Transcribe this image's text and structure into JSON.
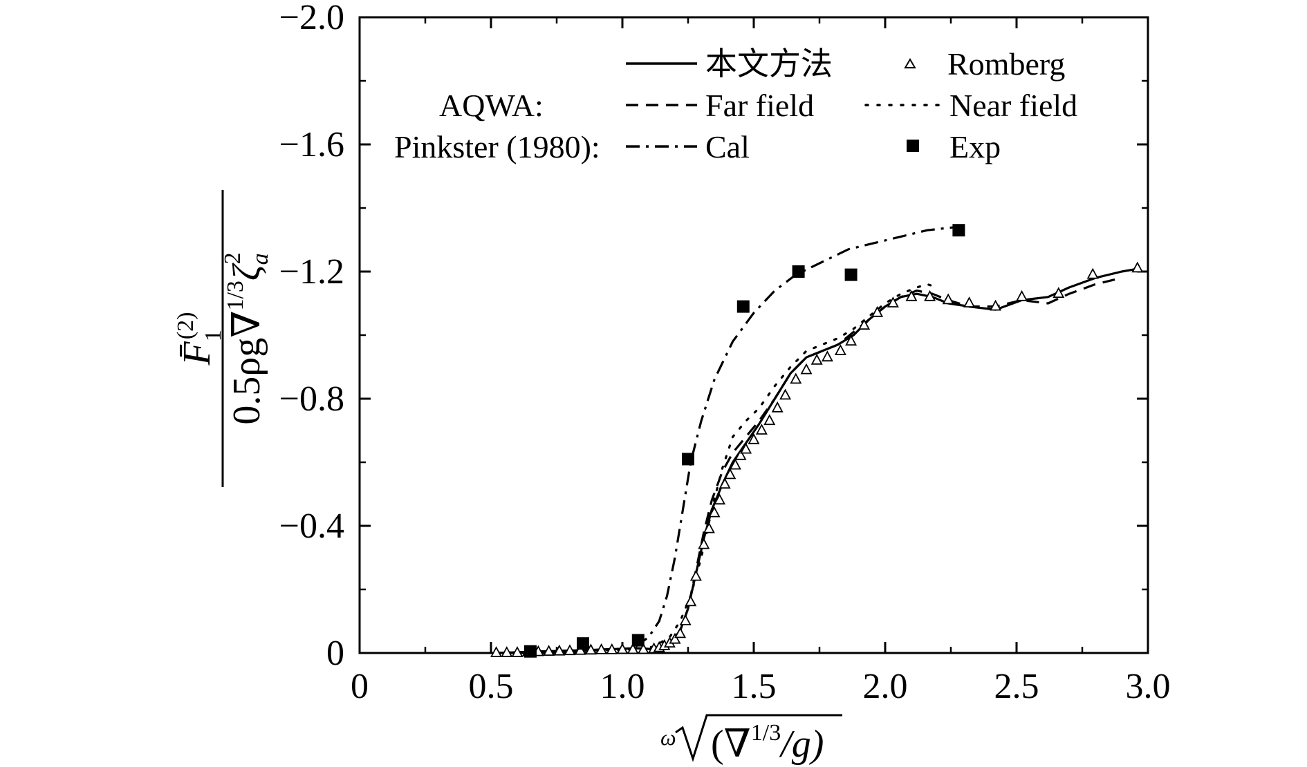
{
  "chart_data": {
    "type": "line",
    "title": "",
    "x_axis": {
      "label_prefix": "ω",
      "label_radicand": "(∇",
      "label_exponent": "1/3",
      "label_suffix": "/g)",
      "range": [
        0,
        3.0
      ],
      "tick_labels": [
        {
          "value": 0,
          "label": "0"
        },
        {
          "value": 0.5,
          "label": "0.5"
        },
        {
          "value": 1.0,
          "label": "1.0"
        },
        {
          "value": 1.5,
          "label": "1.5"
        },
        {
          "value": 2.0,
          "label": "2.0"
        },
        {
          "value": 2.5,
          "label": "2.5"
        },
        {
          "value": 3.0,
          "label": "3.0"
        }
      ]
    },
    "y_axis": {
      "label_numerator": "F̄",
      "label_numerator_sub": "1",
      "label_numerator_sup": "(2)",
      "label_denominator": "0.5ρg∇",
      "label_denominator_sup": "1/3",
      "label_denominator_tail": "ζ",
      "label_denominator_tail_sub": "a",
      "label_denominator_tail_sup": "2",
      "range": [
        0,
        -2.0
      ],
      "inverted": true,
      "tick_labels": [
        {
          "value": 0,
          "label": "0"
        },
        {
          "value": -0.4,
          "label": "−0.4"
        },
        {
          "value": -0.8,
          "label": "−0.8"
        },
        {
          "value": -1.2,
          "label": "−1.2"
        },
        {
          "value": -1.6,
          "label": "−1.6"
        },
        {
          "value": -2.0,
          "label": "−2.0"
        }
      ]
    },
    "legend": {
      "placement": "top",
      "group_aqwa": "AQWA:",
      "group_pinkster": "Pinkster (1980):",
      "entries": [
        {
          "key": "present",
          "label": "本文方法"
        },
        {
          "key": "romberg",
          "label": "Romberg"
        },
        {
          "key": "far",
          "label": "Far field"
        },
        {
          "key": "near",
          "label": "Near field"
        },
        {
          "key": "cal",
          "label": "Cal"
        },
        {
          "key": "exp",
          "label": "Exp"
        }
      ]
    },
    "series": [
      {
        "name": "本文方法",
        "key": "present",
        "style": "solid",
        "x": [
          0.52,
          0.7,
          0.9,
          1.05,
          1.12,
          1.18,
          1.22,
          1.25,
          1.28,
          1.31,
          1.34,
          1.38,
          1.42,
          1.47,
          1.52,
          1.58,
          1.64,
          1.7,
          1.76,
          1.82,
          1.88,
          1.94,
          2.0,
          2.06,
          2.12,
          2.18,
          2.24,
          2.32,
          2.42,
          2.52,
          2.62,
          2.7,
          2.8,
          2.9,
          2.97
        ],
        "y": [
          0,
          -0.005,
          -0.01,
          -0.015,
          -0.012,
          -0.03,
          -0.07,
          -0.14,
          -0.25,
          -0.36,
          -0.45,
          -0.53,
          -0.6,
          -0.66,
          -0.72,
          -0.8,
          -0.88,
          -0.93,
          -0.95,
          -0.97,
          -1.0,
          -1.05,
          -1.09,
          -1.12,
          -1.13,
          -1.12,
          -1.1,
          -1.09,
          -1.08,
          -1.11,
          -1.12,
          -1.15,
          -1.18,
          -1.2,
          -1.21
        ]
      },
      {
        "name": "Far field",
        "key": "far",
        "style": "dashed",
        "x": [
          0.52,
          0.7,
          0.9,
          1.05,
          1.12,
          1.18,
          1.22,
          1.25,
          1.28,
          1.31,
          1.34,
          1.38,
          1.42,
          1.47,
          1.52,
          1.58,
          1.64,
          1.7,
          1.76,
          1.82,
          1.88,
          1.94,
          2.0,
          2.06,
          2.12,
          2.18,
          2.24,
          2.32,
          2.42,
          2.52,
          2.62,
          2.7,
          2.8,
          2.9
        ],
        "y": [
          0,
          -0.005,
          -0.01,
          -0.015,
          -0.012,
          -0.03,
          -0.07,
          -0.14,
          -0.26,
          -0.38,
          -0.48,
          -0.57,
          -0.63,
          -0.68,
          -0.73,
          -0.8,
          -0.88,
          -0.93,
          -0.95,
          -0.97,
          -1.01,
          -1.05,
          -1.09,
          -1.12,
          -1.14,
          -1.13,
          -1.11,
          -1.09,
          -1.09,
          -1.11,
          -1.1,
          -1.13,
          -1.16,
          -1.18
        ]
      },
      {
        "name": "Near field",
        "key": "near",
        "style": "dotted",
        "x": [
          0.52,
          0.7,
          0.9,
          1.05,
          1.12,
          1.18,
          1.22,
          1.26,
          1.3,
          1.34,
          1.38,
          1.42,
          1.47,
          1.52,
          1.58,
          1.64,
          1.7,
          1.76,
          1.82,
          1.88,
          1.94,
          2.0,
          2.06,
          2.12,
          2.16,
          2.2
        ],
        "y": [
          0,
          -0.005,
          -0.008,
          -0.012,
          -0.02,
          -0.05,
          -0.1,
          -0.18,
          -0.3,
          -0.45,
          -0.58,
          -0.68,
          -0.73,
          -0.77,
          -0.84,
          -0.9,
          -0.95,
          -0.97,
          -0.99,
          -1.02,
          -1.06,
          -1.1,
          -1.13,
          -1.15,
          -1.16,
          -1.15
        ]
      },
      {
        "name": "Cal",
        "key": "cal",
        "style": "dashdot",
        "x": [
          1.05,
          1.1,
          1.14,
          1.17,
          1.2,
          1.23,
          1.26,
          1.3,
          1.35,
          1.42,
          1.5,
          1.58,
          1.66,
          1.76,
          1.86,
          1.96,
          2.06,
          2.16,
          2.27
        ],
        "y": [
          -0.02,
          -0.05,
          -0.1,
          -0.18,
          -0.3,
          -0.45,
          -0.6,
          -0.73,
          -0.86,
          -0.98,
          -1.07,
          -1.14,
          -1.19,
          -1.23,
          -1.27,
          -1.29,
          -1.31,
          -1.33,
          -1.34
        ]
      },
      {
        "name": "Romberg",
        "key": "romberg",
        "style": "open-triangle",
        "x": [
          0.52,
          0.56,
          0.6,
          0.64,
          0.68,
          0.72,
          0.76,
          0.8,
          0.84,
          0.88,
          0.92,
          0.96,
          1.0,
          1.04,
          1.08,
          1.12,
          1.14,
          1.16,
          1.18,
          1.2,
          1.22,
          1.24,
          1.26,
          1.28,
          1.31,
          1.33,
          1.35,
          1.37,
          1.39,
          1.41,
          1.43,
          1.45,
          1.47,
          1.5,
          1.53,
          1.56,
          1.59,
          1.62,
          1.66,
          1.7,
          1.74,
          1.78,
          1.83,
          1.87,
          1.92,
          1.97,
          2.03,
          2.1,
          2.17,
          2.24,
          2.32,
          2.42,
          2.52,
          2.66,
          2.79,
          2.96
        ],
        "y": [
          0,
          0,
          0,
          -0.002,
          -0.003,
          -0.004,
          -0.005,
          -0.006,
          -0.007,
          -0.008,
          -0.009,
          -0.009,
          -0.01,
          -0.01,
          -0.01,
          -0.012,
          -0.016,
          -0.022,
          -0.03,
          -0.042,
          -0.06,
          -0.1,
          -0.16,
          -0.24,
          -0.34,
          -0.39,
          -0.44,
          -0.48,
          -0.53,
          -0.56,
          -0.59,
          -0.62,
          -0.64,
          -0.67,
          -0.7,
          -0.73,
          -0.77,
          -0.81,
          -0.86,
          -0.89,
          -0.92,
          -0.93,
          -0.95,
          -0.98,
          -1.03,
          -1.07,
          -1.1,
          -1.12,
          -1.12,
          -1.11,
          -1.1,
          -1.09,
          -1.12,
          -1.13,
          -1.19,
          -1.21
        ]
      },
      {
        "name": "Exp",
        "key": "exp",
        "style": "filled-square",
        "x": [
          0.65,
          0.85,
          1.06,
          1.25,
          1.46,
          1.67,
          1.87,
          2.28
        ],
        "y": [
          -0.005,
          -0.03,
          -0.04,
          -0.61,
          -1.09,
          -1.2,
          -1.19,
          -1.33
        ]
      }
    ]
  }
}
